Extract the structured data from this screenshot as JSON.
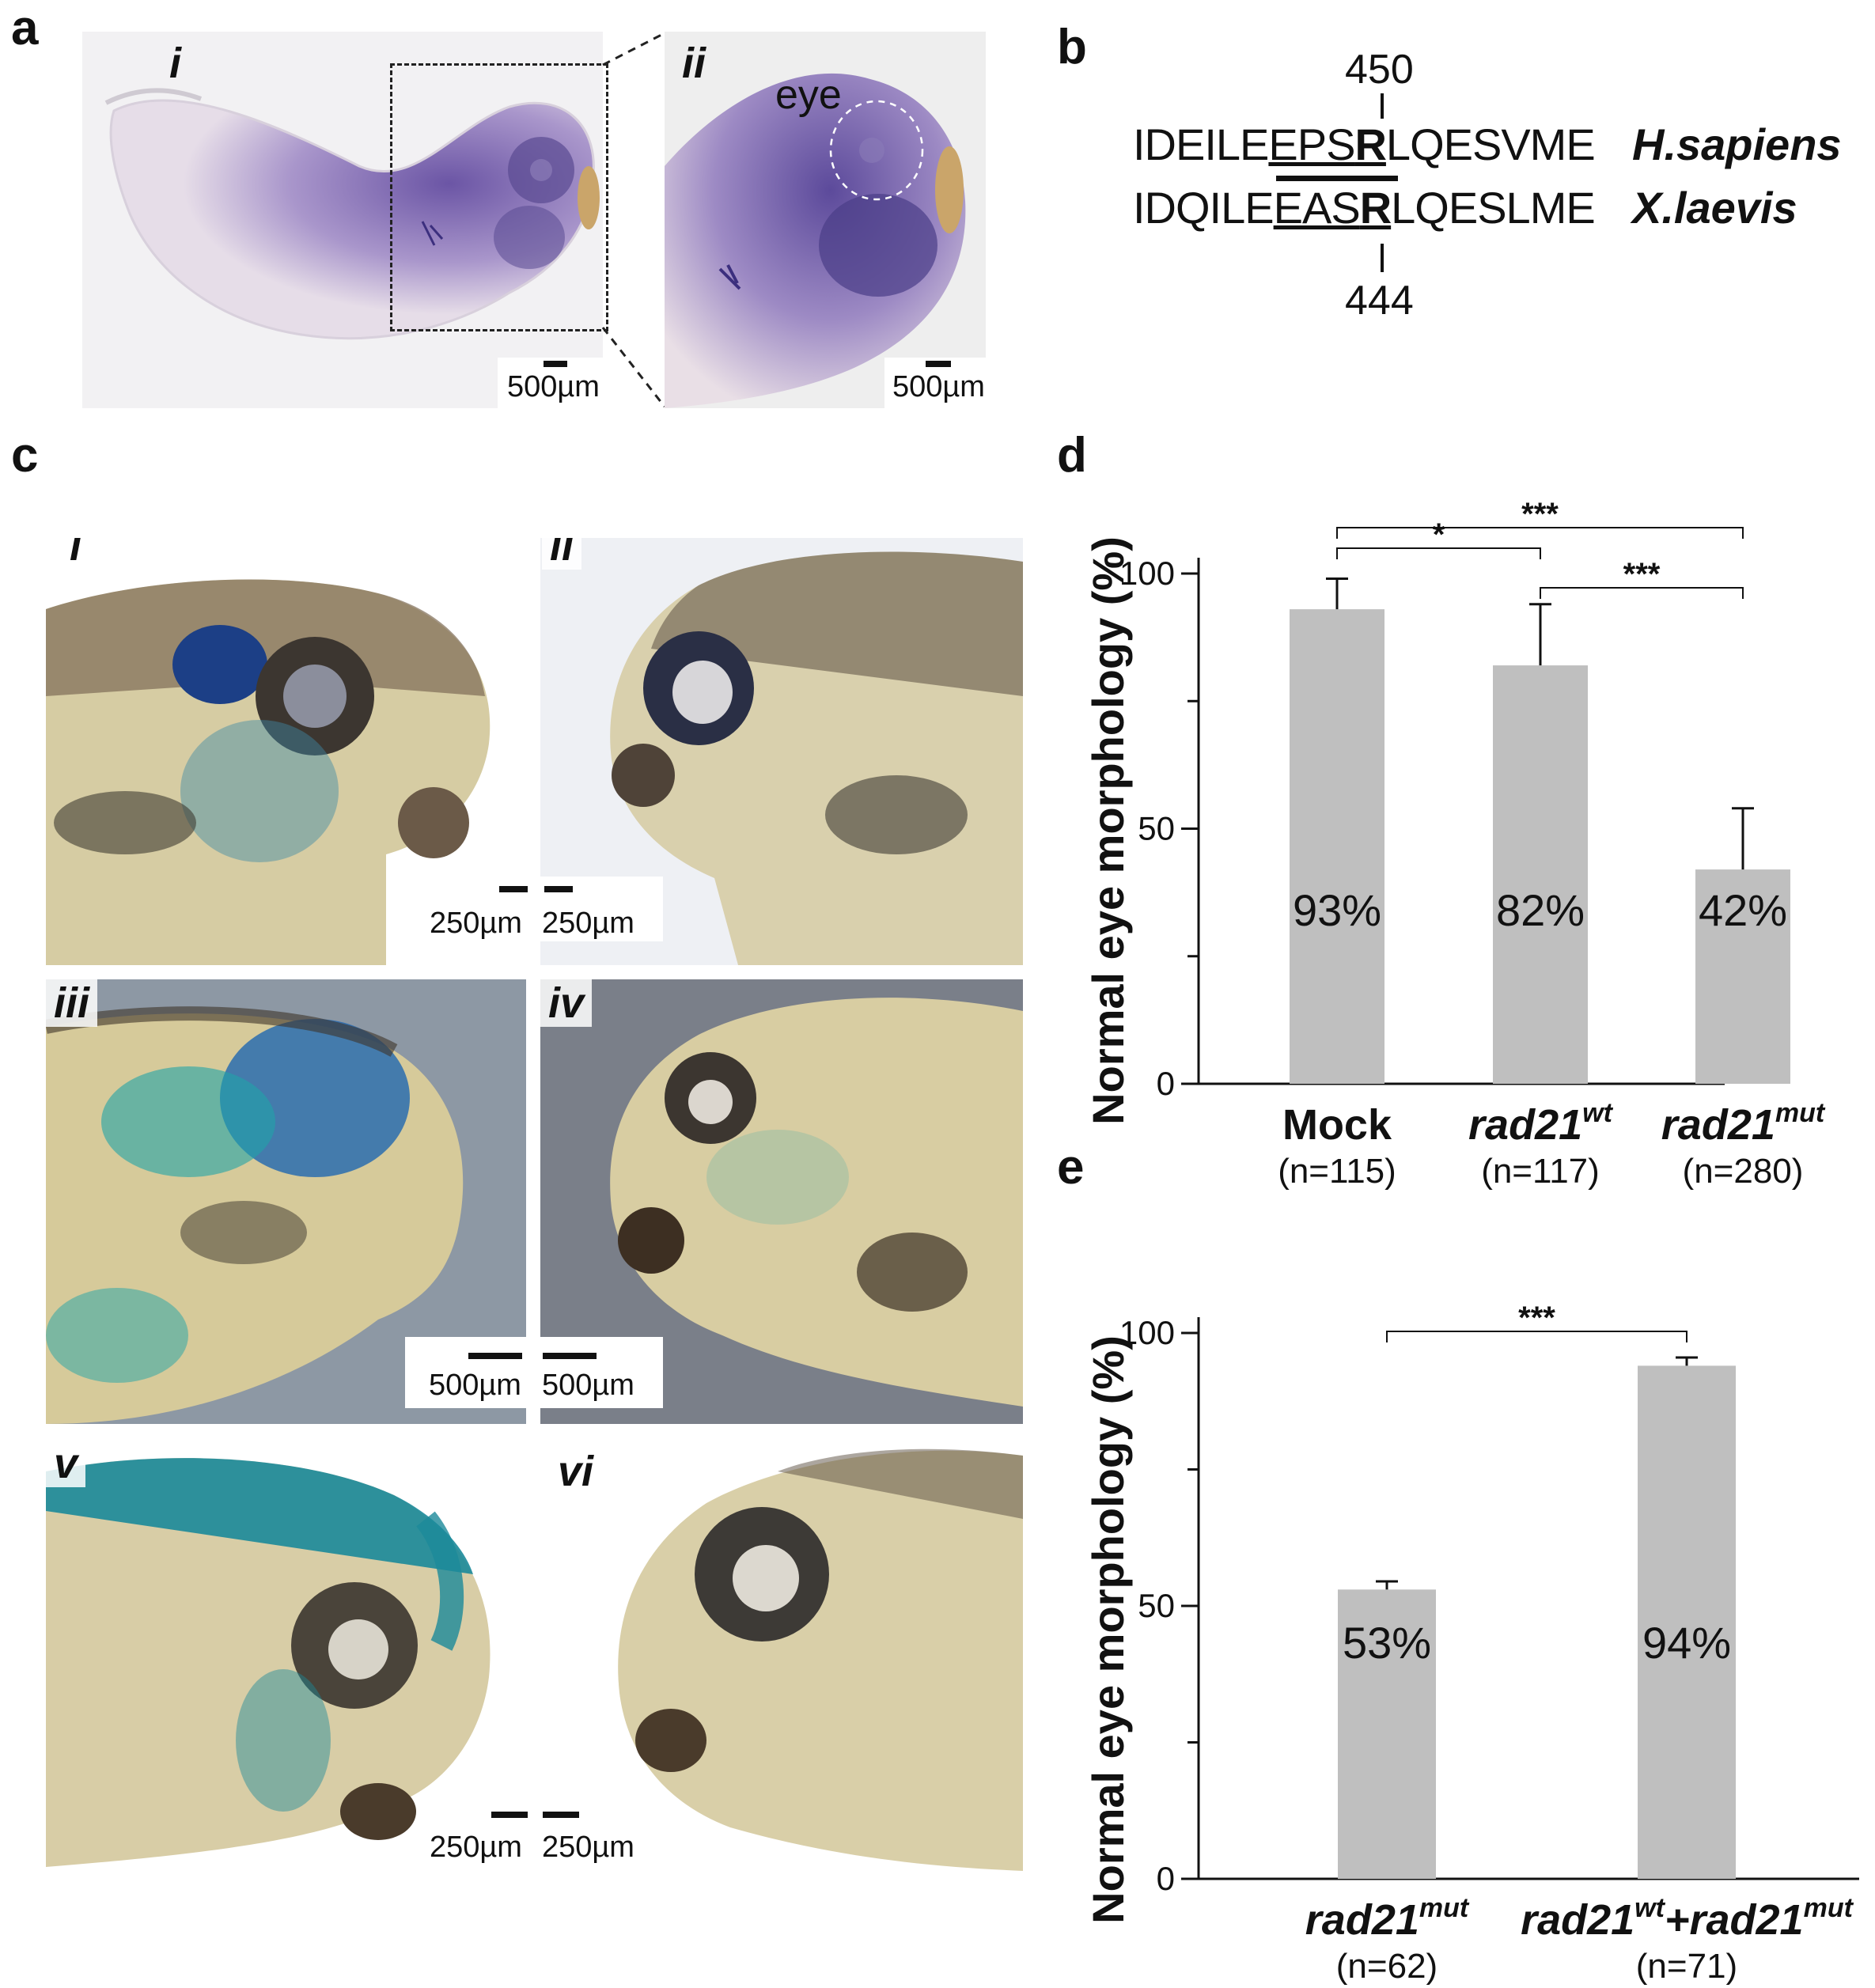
{
  "panels": {
    "a": {
      "letter": "a",
      "sub_i": "i",
      "sub_ii": "ii",
      "eye_label": "eye",
      "scale_i": "500µm",
      "scale_ii": "500µm"
    },
    "b": {
      "letter": "b",
      "top_number": "450",
      "bottom_number": "444",
      "human": {
        "pre": "IDEILE",
        "motif": "EPS",
        "res": "R",
        "post": "LQESVME",
        "species": "H.sapiens"
      },
      "frog": {
        "pre": "IDQILE",
        "motif": "EAS",
        "res": "R",
        "post": "LQESLME",
        "species": "X.laevis"
      }
    },
    "c": {
      "letter": "c",
      "sub_i": "i",
      "sub_ii": "ii",
      "sub_iii": "iii",
      "sub_iv": "iv",
      "sub_v": "v",
      "sub_vi": "vi",
      "scale_top_left": "250µm",
      "scale_top_right": "250µm",
      "scale_mid_left": "500µm",
      "scale_mid_right": "500µm",
      "scale_bot_left": "250µm",
      "scale_bot_right": "250µm"
    },
    "d": {
      "letter": "d"
    },
    "e": {
      "letter": "e"
    }
  },
  "colors": {
    "bar": "#bfbfbf",
    "axis": "#111111",
    "stain_blue": "#1f8fa3",
    "dark_blue": "#1d3a78",
    "purple_stain": "#8a72b8",
    "tissue": "#d9cfa6"
  },
  "chart_data": [
    {
      "id": "d",
      "type": "bar",
      "ylabel": "Normal eye morphology (%)",
      "ylim": [
        0,
        100
      ],
      "yticks": [
        "0",
        "50",
        "100"
      ],
      "categories": [
        {
          "base": "Mock",
          "sup": "",
          "n": "(n=115)"
        },
        {
          "base": "rad21",
          "sup": "wt",
          "n": "(n=117)"
        },
        {
          "base": "rad21",
          "sup": "mut",
          "n": "(n=280)"
        }
      ],
      "values": [
        93,
        82,
        42
      ],
      "errors": [
        6,
        12,
        12
      ],
      "bar_labels": [
        "93%",
        "82%",
        "42%"
      ],
      "significance": [
        {
          "from": 0,
          "to": 2,
          "label": "***"
        },
        {
          "from": 0,
          "to": 1,
          "label": "*"
        },
        {
          "from": 1,
          "to": 2,
          "label": "***"
        }
      ]
    },
    {
      "id": "e",
      "type": "bar",
      "ylabel": "Normal eye morphology (%)",
      "ylim": [
        0,
        100
      ],
      "yticks": [
        "0",
        "50",
        "100"
      ],
      "categories": [
        {
          "base": "rad21",
          "sup": "mut",
          "n": "(n=62)"
        },
        {
          "base": "rad21",
          "sup": "wt",
          "plus": "+rad21",
          "sup2": "mut",
          "n": "(n=71)"
        }
      ],
      "values": [
        53,
        94
      ],
      "errors": [
        1.5,
        1.5
      ],
      "bar_labels": [
        "53%",
        "94%"
      ],
      "significance": [
        {
          "from": 0,
          "to": 1,
          "label": "***"
        }
      ]
    }
  ]
}
